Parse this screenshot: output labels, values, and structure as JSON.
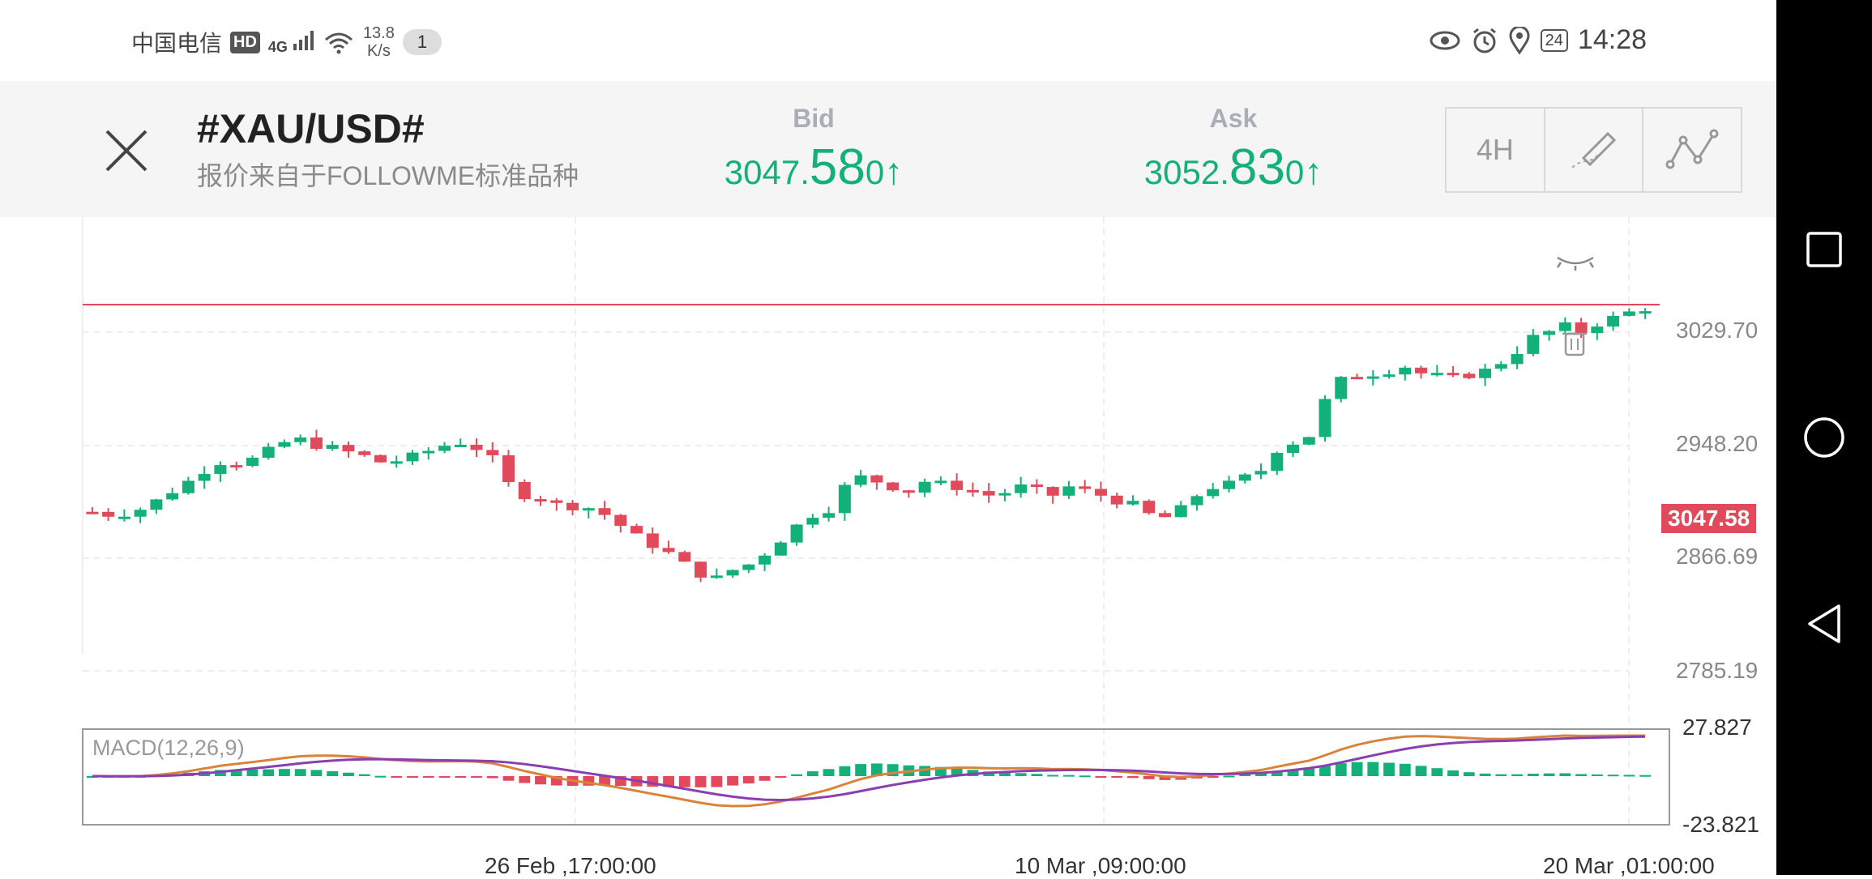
{
  "status_bar": {
    "carrier": "中国电信",
    "hd": "HD",
    "network": "4G",
    "speed_value": "13.8",
    "speed_unit": "K/s",
    "notification_count": "1",
    "battery": "24",
    "time": "14:28"
  },
  "header": {
    "symbol": "#XAU/USD#",
    "subtitle": "报价来自于FOLLOWME标准品种",
    "bid": {
      "label": "Bid",
      "price_prefix": "3047.",
      "price_big": "58",
      "price_suffix": "0",
      "arrow": "↑"
    },
    "ask": {
      "label": "Ask",
      "price_prefix": "3052.",
      "price_big": "83",
      "price_suffix": "0",
      "arrow": "↑"
    },
    "timeframe": "4H",
    "accent_up": "#14b07a"
  },
  "chart": {
    "current_price": "3047.58",
    "price_axis": [
      "3029.70",
      "2948.20",
      "2866.69",
      "2785.19"
    ],
    "dates": [
      "26 Feb ,17:00:00",
      "10 Mar ,09:00:00",
      "20 Mar ,01:00:00"
    ],
    "macd_title": "MACD(12,26,9)",
    "macd_max": "27.827",
    "macd_min": "-23.821",
    "colors": {
      "up": "#14b07a",
      "down": "#e04a5a",
      "dif": "#d9843a",
      "dea": "#8a3fb0",
      "grid": "#e5e5e5"
    },
    "trend": [
      2900,
      2898,
      2899,
      2902,
      2908,
      2915,
      2922,
      2930,
      2936,
      2935,
      2938,
      2944,
      2950,
      2952,
      2948,
      2946,
      2943,
      2940,
      2936,
      2937,
      2940,
      2944,
      2948,
      2950,
      2946,
      2938,
      2920,
      2912,
      2910,
      2905,
      2904,
      2903,
      2898,
      2890,
      2882,
      2876,
      2870,
      2862,
      2855,
      2852,
      2858,
      2862,
      2870,
      2880,
      2890,
      2898,
      2902,
      2918,
      2925,
      2922,
      2918,
      2915,
      2922,
      2920,
      2918,
      2915,
      2912,
      2914,
      2918,
      2915,
      2912,
      2918,
      2915,
      2912,
      2908,
      2905,
      2898,
      2896,
      2902,
      2912,
      2918,
      2920,
      2925,
      2930,
      2945,
      2950,
      2955,
      2980,
      2995,
      2998,
      3000,
      3002,
      3005,
      3000,
      2998,
      2997,
      2999,
      3002,
      3008,
      3016,
      3026,
      3030,
      3034,
      3030,
      3036,
      3040,
      3044,
      3047
    ]
  }
}
